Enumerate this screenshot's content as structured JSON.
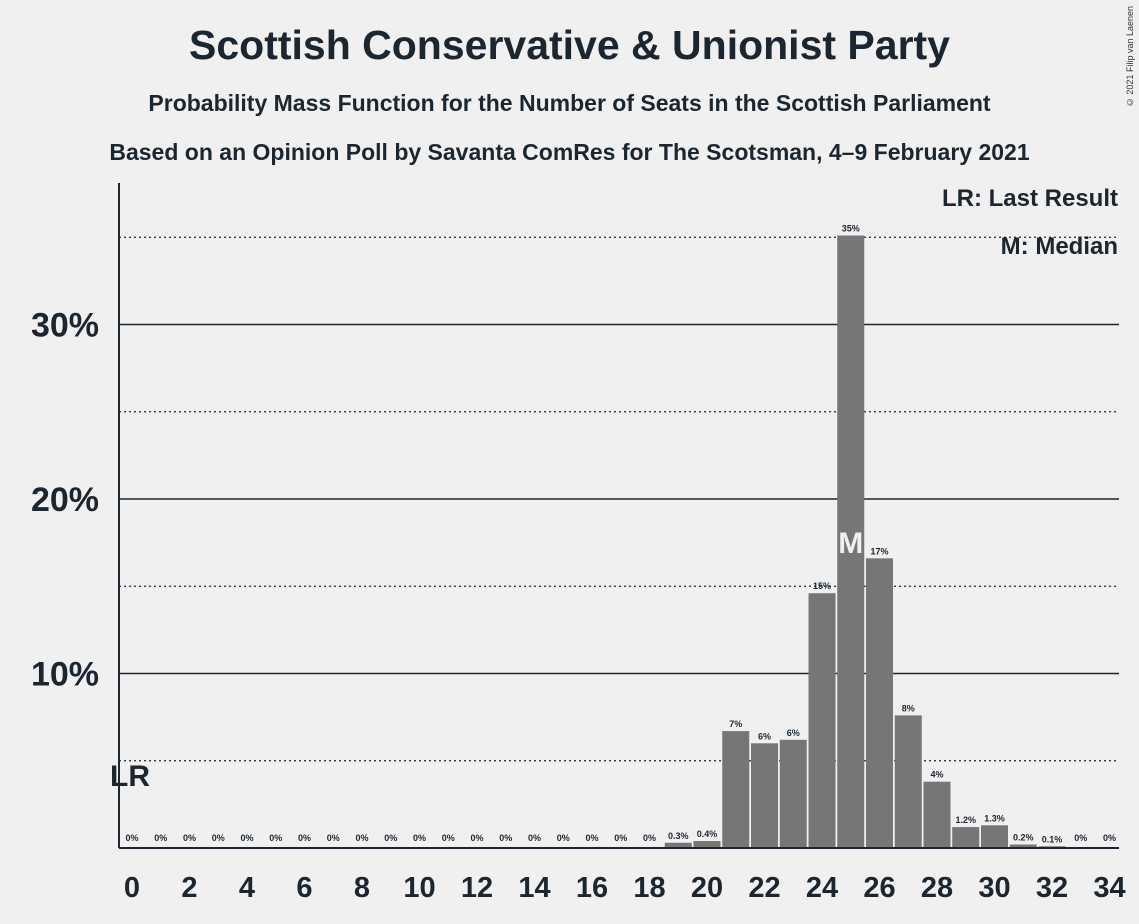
{
  "title": "Scottish Conservative & Unionist Party",
  "subtitle": "Probability Mass Function for the Number of Seats in the Scottish Parliament",
  "subtitle2": "Based on an Opinion Poll by Savanta ComRes for The Scotsman, 4–9 February 2021",
  "copyright": "© 2021 Filip van Laenen",
  "legend": {
    "last_result": "LR: Last Result",
    "median": "M: Median"
  },
  "colors": {
    "bar": "#767676",
    "background": "#f0f0f0",
    "text": "#1b2631"
  },
  "chart_data": {
    "type": "bar",
    "title": "Scottish Conservative & Unionist Party",
    "xlabel": "",
    "ylabel": "",
    "ylim": [
      0,
      38
    ],
    "grid": "solid lines at 10% steps, dotted lines at 5% midpoints",
    "y_ticks": [
      "10%",
      "20%",
      "30%"
    ],
    "x_ticks": [
      "0",
      "2",
      "4",
      "6",
      "8",
      "10",
      "12",
      "14",
      "16",
      "18",
      "20",
      "22",
      "24",
      "26",
      "28",
      "30",
      "32",
      "34"
    ],
    "categories": [
      0,
      1,
      2,
      3,
      4,
      5,
      6,
      7,
      8,
      9,
      10,
      11,
      12,
      13,
      14,
      15,
      16,
      17,
      18,
      19,
      20,
      21,
      22,
      23,
      24,
      25,
      26,
      27,
      28,
      29,
      30,
      31,
      32,
      33,
      34
    ],
    "values": [
      0,
      0,
      0,
      0,
      0,
      0,
      0,
      0,
      0,
      0,
      0,
      0,
      0,
      0,
      0,
      0,
      0,
      0,
      0,
      0.3,
      0.4,
      6.7,
      6.0,
      6.2,
      14.6,
      35.1,
      16.6,
      7.6,
      3.8,
      1.2,
      1.3,
      0.2,
      0.1,
      0,
      0
    ],
    "labels": [
      "0%",
      "0%",
      "0%",
      "0%",
      "0%",
      "0%",
      "0%",
      "0%",
      "0%",
      "0%",
      "0%",
      "0%",
      "0%",
      "0%",
      "0%",
      "0%",
      "0%",
      "0%",
      "0%",
      "0.3%",
      "0.4%",
      "7%",
      "6%",
      "6%",
      "15%",
      "35%",
      "17%",
      "8%",
      "4%",
      "1.2%",
      "1.3%",
      "0.2%",
      "0.1%",
      "0%",
      "0%"
    ],
    "last_result": {
      "seat": 0,
      "label": "LR"
    },
    "median": {
      "seat": 25,
      "label": "M"
    }
  }
}
